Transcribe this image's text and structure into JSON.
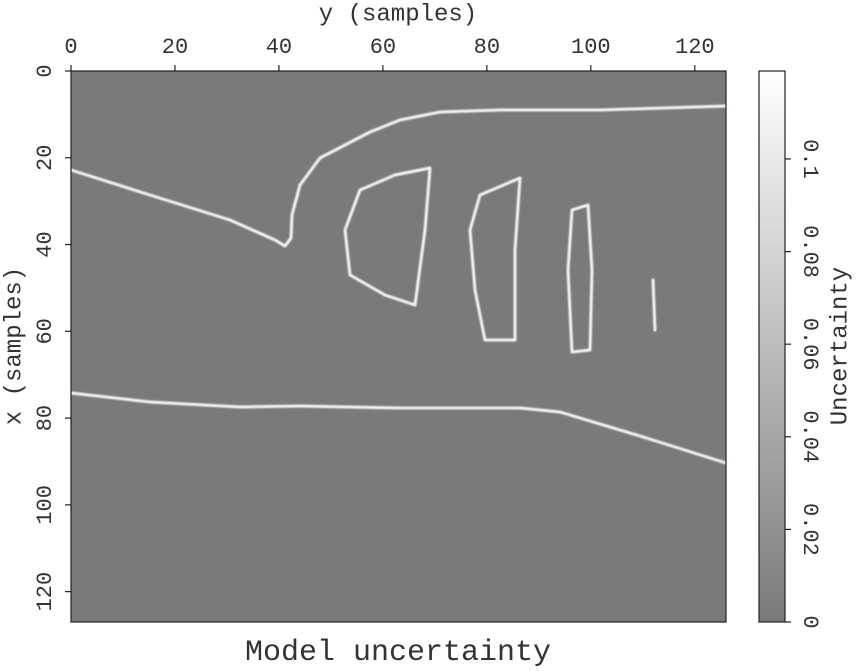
{
  "chart_data": {
    "type": "heatmap",
    "title": "Model uncertainty",
    "xlabel": "y (samples)",
    "ylabel": "x (samples)",
    "xlim": [
      0,
      126
    ],
    "xticks": [
      0,
      20,
      40,
      60,
      80,
      100,
      120
    ],
    "ylim": [
      0,
      127
    ],
    "yticks": [
      0,
      20,
      40,
      60,
      80,
      100,
      120
    ],
    "colorbar": {
      "label": "Uncertainty",
      "lim": [
        0,
        0.119
      ],
      "ticks": [
        0,
        0.02,
        0.04,
        0.06,
        0.08,
        0.1
      ],
      "low_color": "#7a7a7a",
      "high_color": "#ffffff"
    }
  }
}
